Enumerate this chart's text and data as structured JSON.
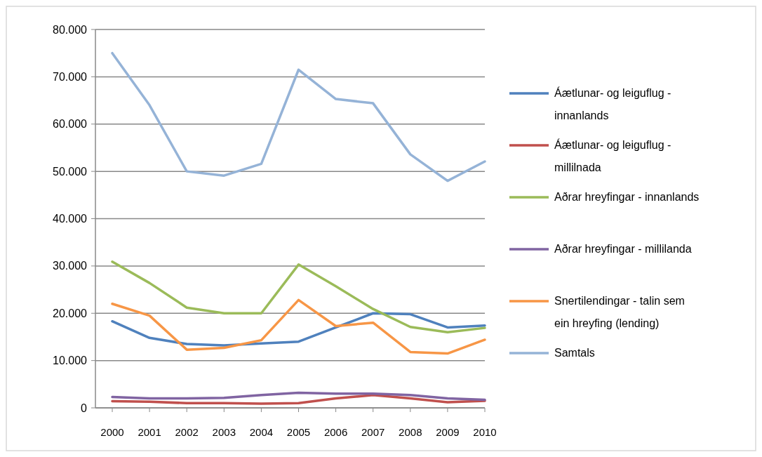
{
  "chart_data": {
    "type": "line",
    "categories": [
      "2000",
      "2001",
      "2002",
      "2003",
      "2004",
      "2005",
      "2006",
      "2007",
      "2008",
      "2009",
      "2010"
    ],
    "series": [
      {
        "name": "Áætlunar- og leiguflug - innanlands",
        "color": "#4f81bd",
        "values": [
          18300,
          14800,
          13500,
          13200,
          13600,
          14000,
          17000,
          20000,
          19800,
          17000,
          17400
        ]
      },
      {
        "name": "Áætlunar- og leiguflug - millilnada",
        "color": "#c0504d",
        "values": [
          1400,
          1300,
          1000,
          1000,
          900,
          1000,
          2000,
          2700,
          2000,
          1200,
          1500
        ]
      },
      {
        "name": "Aðrar hreyfingar - innanlands",
        "color": "#9bbb59",
        "values": [
          30900,
          26400,
          21200,
          20000,
          20000,
          30300,
          25700,
          20900,
          17100,
          16000,
          16900
        ]
      },
      {
        "name": "Aðrar hreyfingar - millilanda",
        "color": "#8064a2",
        "values": [
          2300,
          2000,
          2000,
          2100,
          2700,
          3200,
          3000,
          3000,
          2700,
          2000,
          1700
        ]
      },
      {
        "name": "Snertilendingar - talin sem ein hreyfing (lending)",
        "color": "#f79646",
        "values": [
          22000,
          19500,
          12300,
          12700,
          14300,
          22800,
          17300,
          18000,
          11800,
          11500,
          14400
        ]
      },
      {
        "name": "Samtals",
        "color": "#95b3d7",
        "values": [
          75000,
          64000,
          50000,
          49100,
          51600,
          71500,
          65300,
          64400,
          53600,
          48000,
          52100
        ]
      }
    ],
    "ylim": [
      0,
      80000
    ],
    "yticks": [
      0,
      {
        "value": 10000,
        "label": "10.000"
      },
      {
        "value": 20000,
        "label": "20.000"
      },
      {
        "value": 30000,
        "label": "30.000"
      },
      {
        "value": 40000,
        "label": "40.000"
      },
      {
        "value": 50000,
        "label": "50.000"
      },
      {
        "value": 60000,
        "label": "60.000"
      },
      {
        "value": 70000,
        "label": "70.000"
      },
      {
        "value": 80000,
        "label": "80.000"
      }
    ],
    "grid": "y",
    "legend": "right",
    "marker": "none",
    "line_style": "solid"
  }
}
